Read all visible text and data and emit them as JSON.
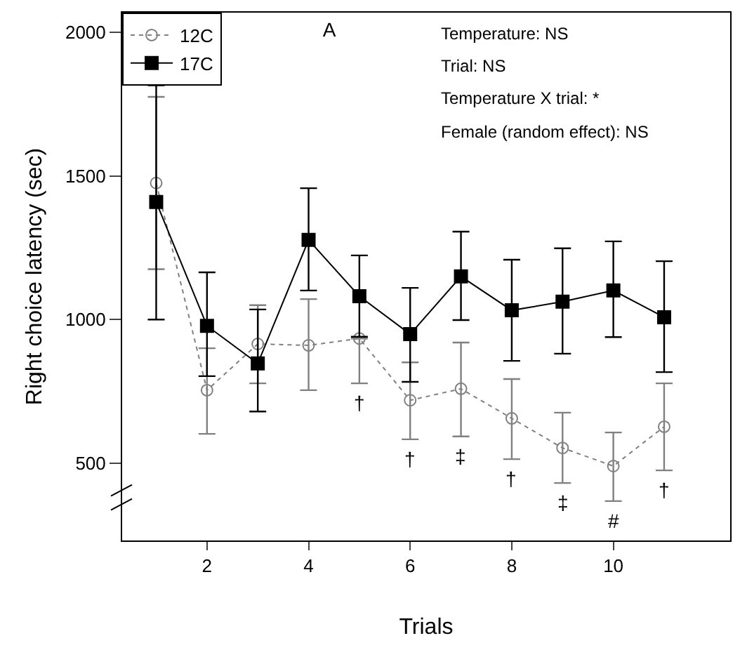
{
  "chart_data": {
    "type": "line",
    "title": "A",
    "xlabel": "Trials",
    "ylabel": "Right choice latency (sec)",
    "x": [
      1,
      2,
      3,
      4,
      5,
      6,
      7,
      8,
      9,
      10,
      11
    ],
    "xlim": [
      0.33,
      12.3
    ],
    "xticks": [
      2,
      4,
      6,
      8,
      10
    ],
    "ylim": [
      231,
      2068
    ],
    "yticks": [
      500,
      1000,
      1500,
      2000
    ],
    "grid": false,
    "legend": "top left",
    "series": [
      {
        "name": "12C",
        "color": "#808080",
        "marker": "circle",
        "line_style": "dotted",
        "values": [
          1475,
          754,
          915,
          910,
          934,
          719,
          759,
          656,
          553,
          490,
          627
        ],
        "errors": [
          [
            1175,
            1775
          ],
          [
            602,
            900
          ],
          [
            778,
            1050
          ],
          [
            754,
            1071
          ],
          [
            778,
            934
          ],
          [
            583,
            851
          ],
          [
            593,
            920
          ],
          [
            514,
            793
          ],
          [
            431,
            676
          ],
          [
            368,
            607
          ],
          [
            475,
            778
          ]
        ]
      },
      {
        "name": "17C",
        "color": "#000000",
        "marker": "square",
        "line_style": "solid",
        "values": [
          1409,
          978,
          847,
          1277,
          1081,
          949,
          1150,
          1032,
          1062,
          1101,
          1008
        ],
        "errors": [
          [
            1000,
            1815
          ],
          [
            803,
            1164
          ],
          [
            680,
            1035
          ],
          [
            1101,
            1457
          ],
          [
            940,
            1223
          ],
          [
            783,
            1110
          ],
          [
            998,
            1306
          ],
          [
            856,
            1208
          ],
          [
            881,
            1248
          ],
          [
            939,
            1272
          ],
          [
            817,
            1203
          ]
        ]
      }
    ],
    "annotations": [
      "Temperature: NS",
      "Trial: NS",
      "Temperature X trial: *",
      "Female (random effect): NS",
      {
        "text": "†",
        "x": 5,
        "y": 934
      },
      {
        "text": "†",
        "x": 6,
        "y": 719
      },
      {
        "text": "‡",
        "x": 7,
        "y": 759
      },
      {
        "text": "†",
        "x": 8,
        "y": 656
      },
      {
        "text": "‡",
        "x": 9,
        "y": 553
      },
      {
        "text": "#",
        "x": 10,
        "y": 490
      },
      {
        "text": "†",
        "x": 11,
        "y": 627
      }
    ]
  }
}
